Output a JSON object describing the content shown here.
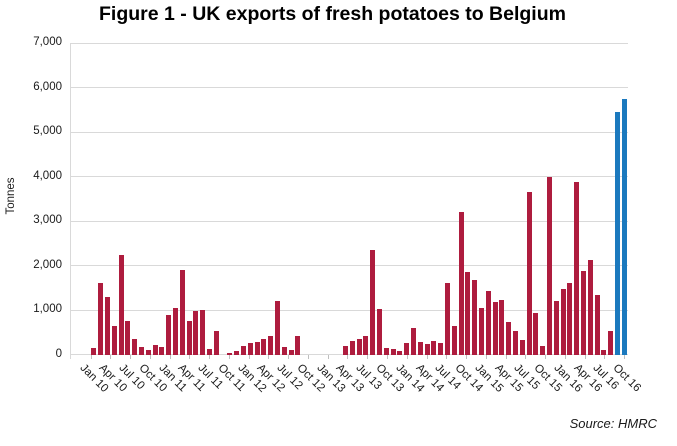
{
  "title": "Figure 1 - UK exports of fresh potatoes to Belgium",
  "source_note": "Source: HMRC",
  "chart_data": {
    "type": "bar",
    "title": "Figure 1 - UK exports of fresh potatoes to Belgium",
    "ylabel": "Tonnes",
    "xlabel": "",
    "ylim": [
      0,
      7000
    ],
    "ytick_step": 1000,
    "ytick_labels": [
      "0",
      "1,000",
      "2,000",
      "3,000",
      "4,000",
      "5,000",
      "6,000",
      "7,000"
    ],
    "xtick_labels": [
      "Jan 10",
      "Apr 10",
      "Jul 10",
      "Oct 10",
      "Jan 11",
      "Apr 11",
      "Jul 11",
      "Oct 11",
      "Jan 12",
      "Apr 12",
      "Jul 12",
      "Oct 12",
      "Jan 13",
      "Apr 13",
      "Jul 13",
      "Oct 13",
      "Jan 14",
      "Apr 14",
      "Jul 14",
      "Oct 14",
      "Jan 15",
      "Apr 15",
      "Jul 15",
      "Oct 15",
      "Jan 16",
      "Apr 16",
      "Jul 16",
      "Oct 16"
    ],
    "grid": "horizontal",
    "legend": "none",
    "bar_color": "#AE1C3E",
    "highlight_color": "#1B79BE",
    "highlight_categories": [
      "Sep 16",
      "Oct 16"
    ],
    "categories": [
      "Jan 10",
      "Feb 10",
      "Mar 10",
      "Apr 10",
      "May 10",
      "Jun 10",
      "Jul 10",
      "Aug 10",
      "Sep 10",
      "Oct 10",
      "Nov 10",
      "Dec 10",
      "Jan 11",
      "Feb 11",
      "Mar 11",
      "Apr 11",
      "May 11",
      "Jun 11",
      "Jul 11",
      "Aug 11",
      "Sep 11",
      "Oct 11",
      "Nov 11",
      "Dec 11",
      "Jan 12",
      "Feb 12",
      "Mar 12",
      "Apr 12",
      "May 12",
      "Jun 12",
      "Jul 12",
      "Aug 12",
      "Sep 12",
      "Oct 12",
      "Nov 12",
      "Dec 12",
      "Jan 13",
      "Feb 13",
      "Mar 13",
      "Apr 13",
      "May 13",
      "Jun 13",
      "Jul 13",
      "Aug 13",
      "Sep 13",
      "Oct 13",
      "Nov 13",
      "Dec 13",
      "Jan 14",
      "Feb 14",
      "Mar 14",
      "Apr 14",
      "May 14",
      "Jun 14",
      "Jul 14",
      "Aug 14",
      "Sep 14",
      "Oct 14",
      "Nov 14",
      "Dec 14",
      "Jan 15",
      "Feb 15",
      "Mar 15",
      "Apr 15",
      "May 15",
      "Jun 15",
      "Jul 15",
      "Aug 15",
      "Sep 15",
      "Oct 15",
      "Nov 15",
      "Dec 15",
      "Jan 16",
      "Feb 16",
      "Mar 16",
      "Apr 16",
      "May 16",
      "Jun 16",
      "Jul 16",
      "Aug 16",
      "Sep 16",
      "Oct 16"
    ],
    "values": [
      0,
      0,
      0,
      150,
      1600,
      1300,
      650,
      2250,
      750,
      360,
      170,
      100,
      220,
      170,
      900,
      1050,
      1900,
      750,
      980,
      1000,
      120,
      530,
      0,
      45,
      80,
      200,
      270,
      290,
      360,
      420,
      1200,
      160,
      100,
      420,
      0,
      0,
      0,
      0,
      0,
      0,
      200,
      310,
      340,
      420,
      2360,
      1030,
      150,
      135,
      85,
      250,
      590,
      280,
      240,
      310,
      250,
      1620,
      650,
      3200,
      1860,
      1670,
      1040,
      1440,
      1190,
      1220,
      730,
      540,
      330,
      3650,
      940,
      200,
      3990,
      1210,
      1480,
      1610,
      3870,
      1890,
      2130,
      1330,
      110,
      525,
      5450,
      5750
    ]
  }
}
